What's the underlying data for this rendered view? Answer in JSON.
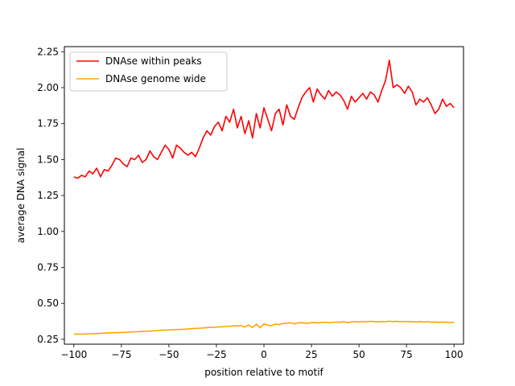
{
  "chart_data": {
    "type": "line",
    "xlabel": "position relative to motif",
    "ylabel": "average DNA signal",
    "xlim": [
      -105,
      105
    ],
    "ylim": [
      0.216,
      2.285
    ],
    "xticks": [
      -100,
      -75,
      -50,
      -25,
      0,
      25,
      50,
      75,
      100
    ],
    "xtick_labels": [
      "−100",
      "−75",
      "−50",
      "−25",
      "0",
      "25",
      "50",
      "75",
      "100"
    ],
    "yticks": [
      0.25,
      0.5,
      0.75,
      1.0,
      1.25,
      1.5,
      1.75,
      2.0,
      2.25
    ],
    "ytick_labels": [
      "0.25",
      "0.50",
      "0.75",
      "1.00",
      "1.25",
      "1.50",
      "1.75",
      "2.00",
      "2.25"
    ],
    "legend_position": "top-left",
    "grid": false,
    "series": [
      {
        "name": "DNAse within peaks",
        "color": "#ff0000",
        "x": [
          -100,
          -98,
          -96,
          -94,
          -92,
          -90,
          -88,
          -86,
          -84,
          -82,
          -80,
          -78,
          -76,
          -74,
          -72,
          -70,
          -68,
          -66,
          -64,
          -62,
          -60,
          -58,
          -56,
          -54,
          -52,
          -50,
          -48,
          -46,
          -44,
          -42,
          -40,
          -38,
          -36,
          -34,
          -32,
          -30,
          -28,
          -26,
          -24,
          -22,
          -20,
          -18,
          -16,
          -14,
          -12,
          -10,
          -8,
          -6,
          -4,
          -2,
          0,
          2,
          4,
          6,
          8,
          10,
          12,
          14,
          16,
          18,
          20,
          22,
          24,
          26,
          28,
          30,
          32,
          34,
          36,
          38,
          40,
          42,
          44,
          46,
          48,
          50,
          52,
          54,
          56,
          58,
          60,
          62,
          64,
          66,
          68,
          70,
          72,
          74,
          76,
          78,
          80,
          82,
          84,
          86,
          88,
          90,
          92,
          94,
          96,
          98,
          100
        ],
        "y": [
          1.38,
          1.37,
          1.39,
          1.38,
          1.42,
          1.4,
          1.44,
          1.38,
          1.43,
          1.42,
          1.46,
          1.51,
          1.5,
          1.47,
          1.45,
          1.51,
          1.5,
          1.53,
          1.48,
          1.5,
          1.56,
          1.52,
          1.5,
          1.55,
          1.6,
          1.57,
          1.51,
          1.6,
          1.58,
          1.55,
          1.53,
          1.55,
          1.52,
          1.58,
          1.65,
          1.7,
          1.67,
          1.73,
          1.76,
          1.7,
          1.8,
          1.76,
          1.85,
          1.72,
          1.8,
          1.68,
          1.77,
          1.65,
          1.82,
          1.72,
          1.86,
          1.78,
          1.7,
          1.82,
          1.85,
          1.74,
          1.88,
          1.8,
          1.78,
          1.86,
          1.93,
          1.97,
          2.0,
          1.9,
          1.99,
          1.95,
          1.92,
          1.98,
          1.94,
          1.97,
          1.95,
          1.91,
          1.85,
          1.94,
          1.9,
          1.93,
          1.96,
          1.92,
          1.97,
          1.95,
          1.9,
          1.98,
          2.05,
          2.19,
          2.0,
          2.02,
          2.0,
          1.96,
          2.01,
          1.97,
          1.88,
          1.92,
          1.9,
          1.93,
          1.88,
          1.82,
          1.85,
          1.92,
          1.87,
          1.89,
          1.86
        ]
      },
      {
        "name": "DNAse genome wide",
        "color": "#ffa500",
        "x": [
          -100,
          -98,
          -96,
          -94,
          -92,
          -90,
          -88,
          -86,
          -84,
          -82,
          -80,
          -78,
          -76,
          -74,
          -72,
          -70,
          -68,
          -66,
          -64,
          -62,
          -60,
          -58,
          -56,
          -54,
          -52,
          -50,
          -48,
          -46,
          -44,
          -42,
          -40,
          -38,
          -36,
          -34,
          -32,
          -30,
          -28,
          -26,
          -24,
          -22,
          -20,
          -18,
          -16,
          -14,
          -12,
          -10,
          -8,
          -6,
          -4,
          -2,
          0,
          2,
          4,
          6,
          8,
          10,
          12,
          14,
          16,
          18,
          20,
          22,
          24,
          26,
          28,
          30,
          32,
          34,
          36,
          38,
          40,
          42,
          44,
          46,
          48,
          50,
          52,
          54,
          56,
          58,
          60,
          62,
          64,
          66,
          68,
          70,
          72,
          74,
          76,
          78,
          80,
          82,
          84,
          86,
          88,
          90,
          92,
          94,
          96,
          98,
          100
        ],
        "y": [
          0.285,
          0.286,
          0.286,
          0.287,
          0.288,
          0.289,
          0.29,
          0.291,
          0.293,
          0.294,
          0.296,
          0.296,
          0.297,
          0.298,
          0.299,
          0.301,
          0.302,
          0.303,
          0.305,
          0.306,
          0.308,
          0.309,
          0.311,
          0.313,
          0.314,
          0.315,
          0.317,
          0.318,
          0.319,
          0.32,
          0.322,
          0.324,
          0.326,
          0.327,
          0.329,
          0.331,
          0.333,
          0.334,
          0.336,
          0.337,
          0.339,
          0.34,
          0.344,
          0.342,
          0.346,
          0.335,
          0.35,
          0.332,
          0.355,
          0.33,
          0.358,
          0.348,
          0.345,
          0.356,
          0.352,
          0.36,
          0.362,
          0.365,
          0.358,
          0.364,
          0.366,
          0.361,
          0.363,
          0.368,
          0.364,
          0.366,
          0.369,
          0.365,
          0.367,
          0.37,
          0.368,
          0.372,
          0.366,
          0.371,
          0.373,
          0.37,
          0.374,
          0.372,
          0.375,
          0.373,
          0.371,
          0.374,
          0.372,
          0.376,
          0.373,
          0.375,
          0.372,
          0.374,
          0.373,
          0.372,
          0.371,
          0.373,
          0.37,
          0.372,
          0.369,
          0.371,
          0.368,
          0.37,
          0.369,
          0.367,
          0.368
        ]
      }
    ]
  }
}
